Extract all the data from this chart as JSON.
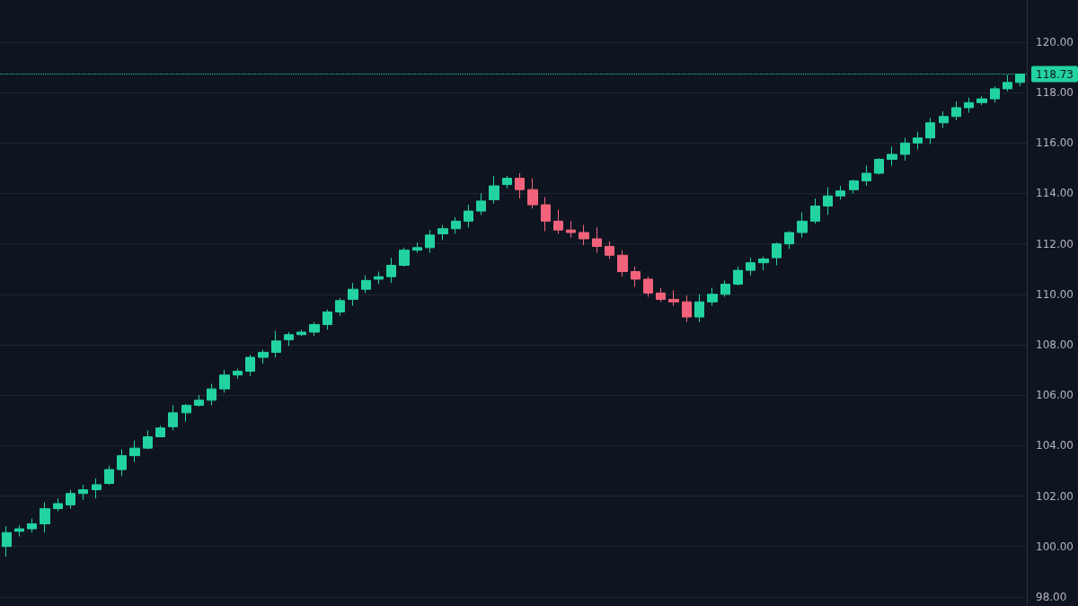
{
  "chart_data": {
    "type": "candlestick",
    "categories": [
      null,
      null,
      null,
      null,
      null,
      null,
      null,
      null,
      null,
      null,
      null,
      null,
      null,
      null,
      null,
      null,
      null,
      null,
      null,
      null,
      null,
      null,
      null,
      null,
      null,
      null,
      null,
      null,
      null,
      null,
      null,
      null,
      null,
      null,
      null,
      null,
      null,
      null,
      null,
      null,
      null,
      null,
      null,
      null,
      null,
      null,
      null,
      null,
      null,
      null,
      null,
      null,
      null,
      null,
      null,
      null,
      null,
      null,
      null,
      null,
      null,
      null,
      null,
      null,
      null,
      null,
      null,
      null,
      null,
      null,
      null,
      null,
      null,
      null,
      null,
      null,
      null,
      null,
      null,
      null
    ],
    "ohlc": [
      [
        100.0,
        100.8,
        99.6,
        100.55
      ],
      [
        100.6,
        100.85,
        100.4,
        100.7
      ],
      [
        100.7,
        101.1,
        100.55,
        100.9
      ],
      [
        100.9,
        101.75,
        100.55,
        101.5
      ],
      [
        101.5,
        101.9,
        101.4,
        101.7
      ],
      [
        101.65,
        102.25,
        101.5,
        102.1
      ],
      [
        102.1,
        102.45,
        101.85,
        102.25
      ],
      [
        102.25,
        102.7,
        101.9,
        102.45
      ],
      [
        102.5,
        103.2,
        102.45,
        103.05
      ],
      [
        103.05,
        103.85,
        102.8,
        103.6
      ],
      [
        103.6,
        104.2,
        103.35,
        103.9
      ],
      [
        103.9,
        104.6,
        103.85,
        104.35
      ],
      [
        104.35,
        104.8,
        104.35,
        104.7
      ],
      [
        104.75,
        105.6,
        104.6,
        105.3
      ],
      [
        105.3,
        105.65,
        104.95,
        105.6
      ],
      [
        105.6,
        106.0,
        105.55,
        105.8
      ],
      [
        105.8,
        106.45,
        105.6,
        106.25
      ],
      [
        106.25,
        107.0,
        106.1,
        106.8
      ],
      [
        106.8,
        107.05,
        106.65,
        106.95
      ],
      [
        106.95,
        107.6,
        106.75,
        107.5
      ],
      [
        107.5,
        107.8,
        107.25,
        107.7
      ],
      [
        107.7,
        108.55,
        107.5,
        108.15
      ],
      [
        108.2,
        108.5,
        107.95,
        108.4
      ],
      [
        108.4,
        108.6,
        108.35,
        108.5
      ],
      [
        108.5,
        108.9,
        108.35,
        108.8
      ],
      [
        108.8,
        109.4,
        108.6,
        109.3
      ],
      [
        109.3,
        109.85,
        109.15,
        109.75
      ],
      [
        109.8,
        110.45,
        109.55,
        110.2
      ],
      [
        110.2,
        110.75,
        110.05,
        110.55
      ],
      [
        110.6,
        110.9,
        110.4,
        110.7
      ],
      [
        110.7,
        111.45,
        110.45,
        111.15
      ],
      [
        111.15,
        111.85,
        111.1,
        111.75
      ],
      [
        111.75,
        112.05,
        111.65,
        111.85
      ],
      [
        111.85,
        112.55,
        111.65,
        112.35
      ],
      [
        112.4,
        112.75,
        112.15,
        112.6
      ],
      [
        112.6,
        113.05,
        112.4,
        112.9
      ],
      [
        112.9,
        113.55,
        112.65,
        113.3
      ],
      [
        113.3,
        114.0,
        113.15,
        113.7
      ],
      [
        113.75,
        114.7,
        113.6,
        114.3
      ],
      [
        114.35,
        114.7,
        114.2,
        114.6
      ],
      [
        114.6,
        114.8,
        113.8,
        114.15
      ],
      [
        114.15,
        114.6,
        113.4,
        113.55
      ],
      [
        113.55,
        113.85,
        112.5,
        112.9
      ],
      [
        112.9,
        113.35,
        112.4,
        112.55
      ],
      [
        112.55,
        112.9,
        112.25,
        112.45
      ],
      [
        112.45,
        112.75,
        111.95,
        112.2
      ],
      [
        112.2,
        112.65,
        111.65,
        111.9
      ],
      [
        111.9,
        112.1,
        111.4,
        111.55
      ],
      [
        111.55,
        111.75,
        110.7,
        110.9
      ],
      [
        110.9,
        111.1,
        110.3,
        110.6
      ],
      [
        110.6,
        110.7,
        109.9,
        110.05
      ],
      [
        110.05,
        110.25,
        109.7,
        109.8
      ],
      [
        109.8,
        110.15,
        109.55,
        109.7
      ],
      [
        109.7,
        109.95,
        108.9,
        109.1
      ],
      [
        109.1,
        110.0,
        108.9,
        109.7
      ],
      [
        109.7,
        110.25,
        109.55,
        110.0
      ],
      [
        110.0,
        110.55,
        109.9,
        110.4
      ],
      [
        110.4,
        111.1,
        110.35,
        110.95
      ],
      [
        110.95,
        111.45,
        110.75,
        111.25
      ],
      [
        111.25,
        111.5,
        110.95,
        111.4
      ],
      [
        111.45,
        112.05,
        111.15,
        112.0
      ],
      [
        112.0,
        112.5,
        111.8,
        112.45
      ],
      [
        112.45,
        113.25,
        112.25,
        112.9
      ],
      [
        112.9,
        113.8,
        112.8,
        113.5
      ],
      [
        113.5,
        114.25,
        113.15,
        113.9
      ],
      [
        113.9,
        114.3,
        113.75,
        114.1
      ],
      [
        114.15,
        114.55,
        114.0,
        114.5
      ],
      [
        114.5,
        115.1,
        114.3,
        114.8
      ],
      [
        114.8,
        115.4,
        114.75,
        115.35
      ],
      [
        115.35,
        115.85,
        115.1,
        115.55
      ],
      [
        115.55,
        116.2,
        115.3,
        116.0
      ],
      [
        116.0,
        116.45,
        115.75,
        116.2
      ],
      [
        116.2,
        117.0,
        115.95,
        116.8
      ],
      [
        116.8,
        117.25,
        116.6,
        117.05
      ],
      [
        117.05,
        117.65,
        116.9,
        117.4
      ],
      [
        117.4,
        117.8,
        117.2,
        117.6
      ],
      [
        117.6,
        117.85,
        117.5,
        117.75
      ],
      [
        117.75,
        118.25,
        117.6,
        118.15
      ],
      [
        118.15,
        118.7,
        118.05,
        118.4
      ],
      [
        118.4,
        118.75,
        118.25,
        118.73
      ]
    ],
    "colors": [
      "#22d3a0",
      "#22d3a0",
      "#22d3a0",
      "#22d3a0",
      "#22d3a0",
      "#22d3a0",
      "#22d3a0",
      "#22d3a0",
      "#22d3a0",
      "#22d3a0",
      "#22d3a0",
      "#22d3a0",
      "#22d3a0",
      "#22d3a0",
      "#22d3a0",
      "#22d3a0",
      "#22d3a0",
      "#22d3a0",
      "#22d3a0",
      "#22d3a0",
      "#22d3a0",
      "#22d3a0",
      "#22d3a0",
      "#22d3a0",
      "#22d3a0",
      "#22d3a0",
      "#22d3a0",
      "#22d3a0",
      "#22d3a0",
      "#22d3a0",
      "#22d3a0",
      "#22d3a0",
      "#22d3a0",
      "#22d3a0",
      "#22d3a0",
      "#22d3a0",
      "#22d3a0",
      "#22d3a0",
      "#22d3a0",
      "#22d3a0",
      "#f2637b",
      "#f2637b",
      "#f2637b",
      "#f2637b",
      "#f2637b",
      "#f2637b",
      "#f2637b",
      "#f2637b",
      "#f2637b",
      "#f2637b",
      "#f2637b",
      "#f2637b",
      "#f2637b",
      "#f2637b",
      "#22d3a0",
      "#22d3a0",
      "#22d3a0",
      "#22d3a0",
      "#22d3a0",
      "#22d3a0",
      "#22d3a0",
      "#22d3a0",
      "#22d3a0",
      "#22d3a0",
      "#22d3a0",
      "#22d3a0",
      "#22d3a0",
      "#22d3a0",
      "#22d3a0",
      "#22d3a0",
      "#22d3a0",
      "#22d3a0",
      "#22d3a0",
      "#22d3a0",
      "#22d3a0",
      "#22d3a0",
      "#22d3a0",
      "#22d3a0",
      "#22d3a0",
      "#22d3a0"
    ],
    "ylim": [
      97.64,
      121.67
    ],
    "yticks": [
      {
        "value": 98,
        "label": "98.00"
      },
      {
        "value": 100,
        "label": "100.00"
      },
      {
        "value": 102,
        "label": "102.00"
      },
      {
        "value": 104,
        "label": "104.00"
      },
      {
        "value": 106,
        "label": "106.00"
      },
      {
        "value": 108,
        "label": "108.00"
      },
      {
        "value": 110,
        "label": "110.00"
      },
      {
        "value": 112,
        "label": "112.00"
      },
      {
        "value": 114,
        "label": "114.00"
      },
      {
        "value": 116,
        "label": "116.00"
      },
      {
        "value": 118,
        "label": "118.00"
      },
      {
        "value": 120,
        "label": "120.00"
      }
    ],
    "grid": "y",
    "tick_labels": "y",
    "ref_lines": [
      {
        "axis": "y",
        "value": 118.73,
        "label": "118.73",
        "color": "#22d3a0",
        "line_style": "dotted"
      }
    ]
  }
}
